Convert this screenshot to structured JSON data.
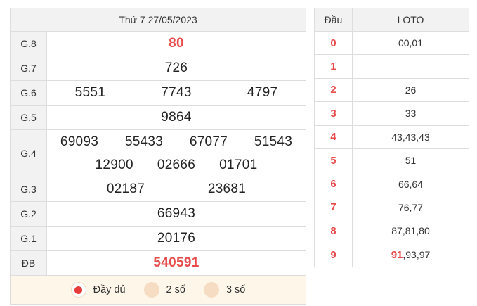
{
  "results": {
    "title": "Thứ 7 27/05/2023",
    "g8": {
      "label": "G.8",
      "numbers": [
        "80"
      ]
    },
    "g7": {
      "label": "G.7",
      "numbers": [
        "726"
      ]
    },
    "g6": {
      "label": "G.6",
      "numbers": [
        "5551",
        "7743",
        "4797"
      ]
    },
    "g5": {
      "label": "G.5",
      "numbers": [
        "9864"
      ]
    },
    "g4": {
      "label": "G.4",
      "numbers": [
        "69093",
        "55433",
        "67077",
        "51543",
        "12900",
        "02666",
        "01701"
      ]
    },
    "g3": {
      "label": "G.3",
      "numbers": [
        "02187",
        "23681"
      ]
    },
    "g2": {
      "label": "G.2",
      "numbers": [
        "66943"
      ]
    },
    "g1": {
      "label": "G.1",
      "numbers": [
        "20176"
      ]
    },
    "db": {
      "label": "ĐB",
      "numbers": [
        "540591"
      ]
    },
    "options": [
      {
        "label": "Đầy đủ",
        "selected": true
      },
      {
        "label": "2 số",
        "selected": false
      },
      {
        "label": "3 số",
        "selected": false
      }
    ]
  },
  "loto": {
    "header_dau": "Đầu",
    "header_loto": "LOTO",
    "rows": [
      {
        "dau": "0",
        "highlight": "",
        "rest": "00,01"
      },
      {
        "dau": "1",
        "highlight": "",
        "rest": ""
      },
      {
        "dau": "2",
        "highlight": "",
        "rest": "26"
      },
      {
        "dau": "3",
        "highlight": "",
        "rest": "33"
      },
      {
        "dau": "4",
        "highlight": "",
        "rest": "43,43,43"
      },
      {
        "dau": "5",
        "highlight": "",
        "rest": "51"
      },
      {
        "dau": "6",
        "highlight": "",
        "rest": "66,64"
      },
      {
        "dau": "7",
        "highlight": "",
        "rest": "76,77"
      },
      {
        "dau": "8",
        "highlight": "",
        "rest": "87,81,80"
      },
      {
        "dau": "9",
        "highlight": "91",
        "rest": ",93,97"
      }
    ]
  },
  "colors": {
    "accent_red": "#e84b4b",
    "option_bg": "#fdf6e9",
    "header_bg": "#f2f2f2"
  }
}
